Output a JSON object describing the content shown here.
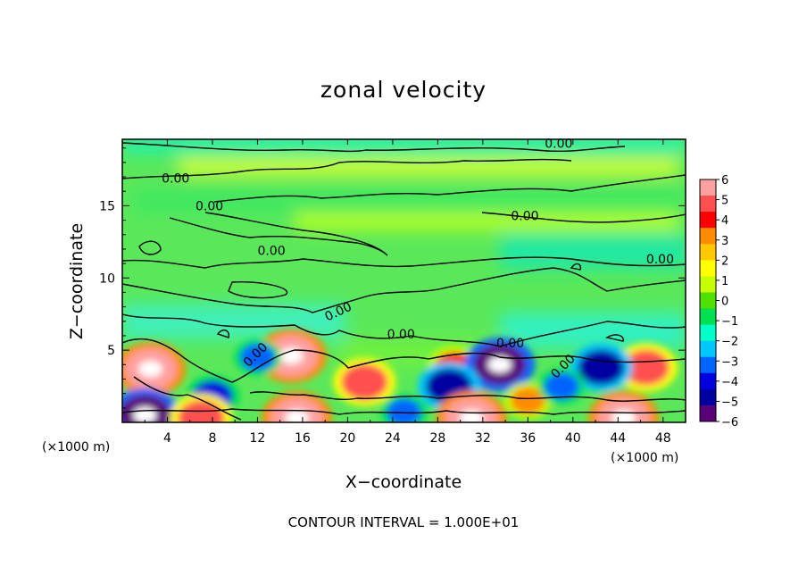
{
  "chart_data": {
    "type": "heatmap",
    "title": "zonal velocity",
    "xlabel": "X−coordinate",
    "ylabel": "Z−coordinate",
    "x_unit_left": "(×1000 m)",
    "x_unit_right": "(×1000 m)",
    "x_ticks": [
      4,
      8,
      12,
      16,
      20,
      24,
      28,
      32,
      36,
      40,
      44,
      48
    ],
    "y_ticks": [
      5,
      10,
      15
    ],
    "xlim": [
      0,
      50
    ],
    "ylim": [
      0,
      19.6
    ],
    "colorbar": {
      "labels": [
        "6",
        "5",
        "4",
        "3",
        "2",
        "1",
        "0",
        "−1",
        "−2",
        "−3",
        "−4",
        "−5",
        "−6"
      ],
      "range": [
        -6,
        6
      ],
      "colors": [
        "#ffa0a0",
        "#ff5050",
        "#ff0000",
        "#ff8c00",
        "#ffc800",
        "#ffff00",
        "#c8ff00",
        "#50e000",
        "#00e050",
        "#00ffc8",
        "#00c8ff",
        "#0064ff",
        "#0000e0",
        "#0000a0",
        "#5a0078"
      ]
    },
    "contour_label": "0.00",
    "contour_interval_text": "CONTOUR INTERVAL = 1.000E+01",
    "features": [
      {
        "x": 2.5,
        "z": 3.7,
        "value": 6
      },
      {
        "x": 15.0,
        "z": 4.6,
        "value": 6
      },
      {
        "x": 21.5,
        "z": 2.8,
        "value": 5
      },
      {
        "x": 29.5,
        "z": 3.8,
        "value": 4
      },
      {
        "x": 46.5,
        "z": 3.8,
        "value": 5
      },
      {
        "x": 33.5,
        "z": 4.0,
        "value": -6
      },
      {
        "x": 29.0,
        "z": 2.5,
        "value": -5
      },
      {
        "x": 42.5,
        "z": 3.8,
        "value": -5
      },
      {
        "x": 8.0,
        "z": 1.8,
        "value": -4
      },
      {
        "x": 2.0,
        "z": 0.5,
        "value": -6
      },
      {
        "x": 15.5,
        "z": 0.3,
        "value": 6
      },
      {
        "x": 31.0,
        "z": 0.3,
        "value": 6
      },
      {
        "x": 44.5,
        "z": 0.3,
        "value": 6
      },
      {
        "x": 7.0,
        "z": 0.3,
        "value": 5
      },
      {
        "x": 36.0,
        "z": 1.5,
        "value": 3
      },
      {
        "x": 25.0,
        "z": 0.7,
        "value": -3
      },
      {
        "x": 39.0,
        "z": 2.5,
        "value": -3
      },
      {
        "x": 12.0,
        "z": 4.5,
        "value": -3
      }
    ]
  }
}
